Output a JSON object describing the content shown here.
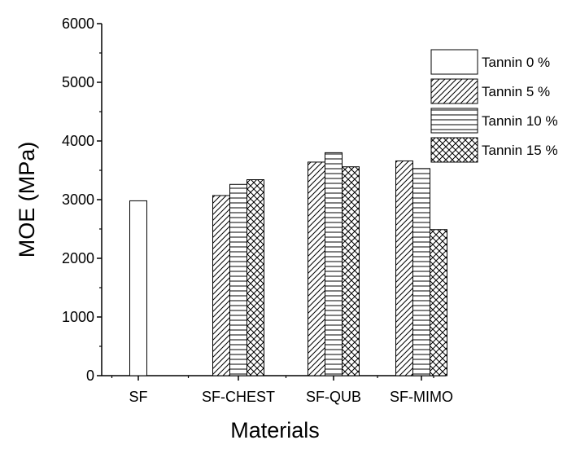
{
  "chart_data": {
    "type": "bar",
    "title": "",
    "xlabel": "Materials",
    "ylabel": "MOE (MPa)",
    "ylim": [
      0,
      6000
    ],
    "yticks": [
      "0",
      "1000",
      "2000",
      "3000",
      "4000",
      "5000",
      "6000"
    ],
    "categories": [
      "SF",
      "SF-CHEST",
      "SF-QUB",
      "SF-MIMO"
    ],
    "legend_position": "top-right",
    "grid": false,
    "series": [
      {
        "name": "Tannin 0 %",
        "pattern": "none",
        "values": [
          2980,
          null,
          null,
          null
        ]
      },
      {
        "name": "Tannin 5 %",
        "pattern": "diagonal",
        "values": [
          null,
          3070,
          3640,
          3660
        ]
      },
      {
        "name": "Tannin 10 %",
        "pattern": "horizontal",
        "values": [
          null,
          3260,
          3800,
          3530
        ]
      },
      {
        "name": "Tannin 15 %",
        "pattern": "crosshatch",
        "values": [
          null,
          3340,
          3560,
          2490
        ]
      }
    ],
    "colors": {
      "stroke": "#000000",
      "fill": "#ffffff"
    }
  }
}
